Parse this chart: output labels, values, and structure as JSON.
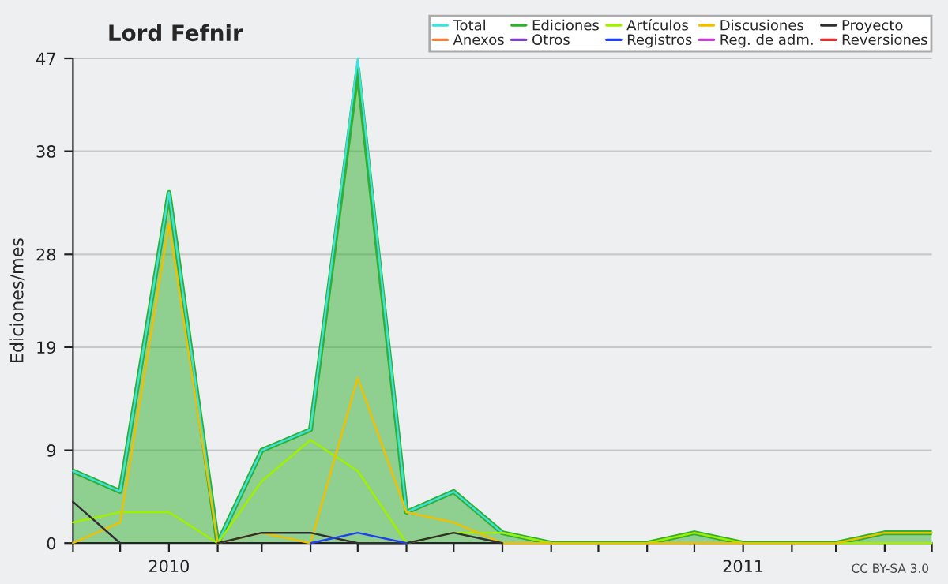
{
  "chart_data": {
    "type": "line",
    "title": "Lord Fefnir",
    "ylabel": "Ediciones/mes",
    "x": [
      "2009-11",
      "2009-12",
      "2010-01",
      "2010-02",
      "2010-03",
      "2010-04",
      "2010-05",
      "2010-06",
      "2010-07",
      "2010-08",
      "2010-09",
      "2010-10",
      "2010-11",
      "2010-12",
      "2011-01",
      "2011-02",
      "2011-03",
      "2011-04",
      "2011-05"
    ],
    "series": [
      {
        "name": "Total",
        "color": "#40e0e0",
        "values": [
          7,
          5,
          34,
          0,
          9,
          11,
          47,
          3,
          5,
          1,
          0,
          null,
          null,
          null,
          null,
          null,
          null,
          null,
          null
        ]
      },
      {
        "name": "Ediciones",
        "type": "area",
        "color": "#30b030",
        "values": [
          7,
          5,
          34,
          0,
          9,
          11,
          46,
          3,
          5,
          1,
          0,
          0,
          0,
          1,
          0,
          0,
          0,
          1,
          1
        ]
      },
      {
        "name": "Artículos",
        "color": "#a0f000",
        "values": [
          2,
          3,
          3,
          0,
          6,
          10,
          7,
          0,
          1,
          1,
          0,
          0,
          0,
          1,
          0,
          0,
          0,
          0,
          0
        ]
      },
      {
        "name": "Discusiones",
        "color": "#f0c000",
        "values": [
          0,
          2,
          31,
          0,
          1,
          0,
          16,
          3,
          2,
          0,
          0,
          0,
          0,
          0,
          0,
          0,
          0,
          1,
          1
        ]
      },
      {
        "name": "Proyecto",
        "color": "#303030",
        "values": [
          4,
          0,
          null,
          0,
          1,
          1,
          0,
          0,
          1,
          0,
          null,
          null,
          null,
          null,
          null,
          null,
          null,
          null,
          null
        ]
      },
      {
        "name": "Anexos",
        "color": "#f08040",
        "values": [
          null,
          null,
          null,
          null,
          null,
          null,
          null,
          null,
          null,
          null,
          null,
          null,
          null,
          null,
          null,
          null,
          null,
          null,
          null
        ]
      },
      {
        "name": "Otros",
        "color": "#8040c0",
        "values": [
          null,
          null,
          null,
          null,
          null,
          null,
          null,
          null,
          null,
          null,
          null,
          null,
          null,
          null,
          null,
          null,
          null,
          null,
          null
        ]
      },
      {
        "name": "Registros",
        "color": "#2040f0",
        "values": [
          null,
          null,
          null,
          null,
          null,
          0,
          1,
          0,
          null,
          null,
          null,
          null,
          null,
          null,
          null,
          null,
          null,
          null,
          null
        ]
      },
      {
        "name": "Reg. de adm.",
        "color": "#c040d0",
        "values": [
          null,
          null,
          null,
          null,
          null,
          null,
          null,
          null,
          null,
          null,
          null,
          null,
          null,
          null,
          null,
          null,
          null,
          null,
          null
        ]
      },
      {
        "name": "Reversiones",
        "color": "#e03030",
        "values": [
          null,
          null,
          null,
          null,
          null,
          null,
          null,
          null,
          null,
          null,
          null,
          null,
          null,
          null,
          null,
          null,
          null,
          null,
          null
        ]
      }
    ],
    "xlim": [
      "2009-11",
      "2011-05"
    ],
    "xticks": [
      {
        "value": "2009-11",
        "label": null
      },
      {
        "value": "2009-12",
        "label": null
      },
      {
        "value": "2010-01",
        "label": "2010"
      },
      {
        "value": "2010-02",
        "label": null
      },
      {
        "value": "2010-03",
        "label": null
      },
      {
        "value": "2010-04",
        "label": null
      },
      {
        "value": "2010-05",
        "label": null
      },
      {
        "value": "2010-06",
        "label": null
      },
      {
        "value": "2010-07",
        "label": null
      },
      {
        "value": "2010-08",
        "label": null
      },
      {
        "value": "2010-09",
        "label": null
      },
      {
        "value": "2010-10",
        "label": null
      },
      {
        "value": "2010-11",
        "label": null
      },
      {
        "value": "2010-12",
        "label": null
      },
      {
        "value": "2011-01",
        "label": "2011"
      },
      {
        "value": "2011-02",
        "label": null
      },
      {
        "value": "2011-03",
        "label": null
      },
      {
        "value": "2011-04",
        "label": null
      },
      {
        "value": "2011-05",
        "label": null
      }
    ],
    "ylim": [
      0,
      47
    ],
    "yticks": [
      0,
      9,
      19,
      28,
      38,
      47
    ],
    "grid": "y",
    "legend": "top right",
    "annotations": [
      "CC BY-SA 3.0"
    ]
  }
}
